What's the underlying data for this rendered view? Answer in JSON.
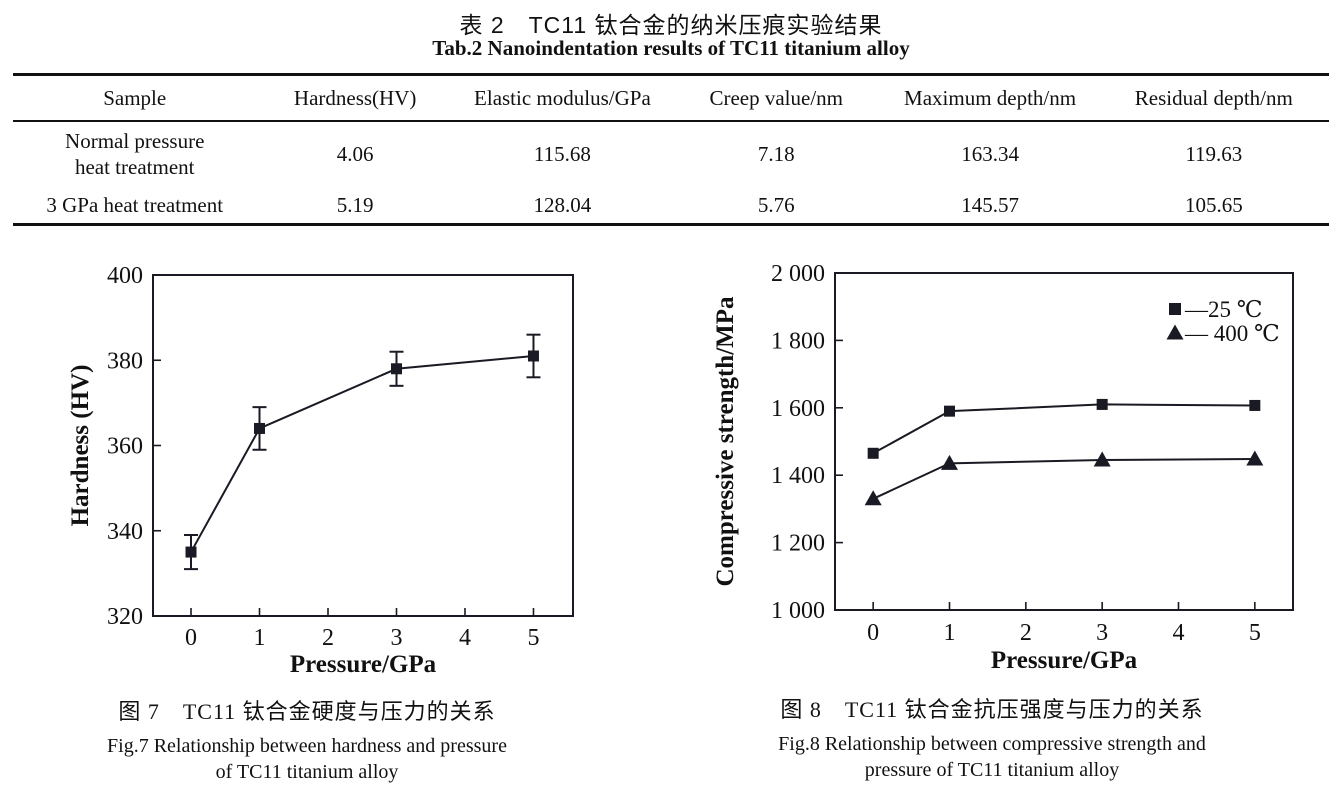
{
  "page": {
    "title_zh": "表 2　TC11 钛合金的纳米压痕实验结果",
    "title_en": "Tab.2 Nanoindentation results of TC11 titanium alloy"
  },
  "table": {
    "columns": [
      "Sample",
      "Hardness(HV)",
      "Elastic modulus/GPa",
      "Creep value/nm",
      "Maximum depth/nm",
      "Residual depth/nm"
    ],
    "rows": [
      {
        "sample": [
          "Normal pressure",
          "heat treatment"
        ],
        "values": [
          "4.06",
          "115.68",
          "7.18",
          "163.34",
          "119.63"
        ]
      },
      {
        "sample": [
          "3 GPa heat treatment"
        ],
        "values": [
          "5.19",
          "128.04",
          "5.76",
          "145.57",
          "105.65"
        ]
      }
    ]
  },
  "colors": {
    "ink": "#1a1a24",
    "text": "#111111",
    "background": "#ffffff"
  },
  "chart_data": [
    {
      "type": "line",
      "id": "fig7",
      "title": "",
      "x": [
        0,
        1,
        3,
        5
      ],
      "series": [
        {
          "name": "hardness",
          "marker": "square",
          "values": [
            335,
            364,
            378,
            381
          ],
          "errors": [
            4,
            5,
            4,
            5
          ]
        }
      ],
      "xlabel": "Pressure/GPa",
      "ylabel": "Hardness (HV)",
      "xticks": [
        0,
        1,
        2,
        3,
        4,
        5
      ],
      "yticks": [
        320,
        340,
        360,
        380,
        400
      ],
      "xlim": [
        -0.555,
        5.577
      ],
      "ylim": [
        320,
        400
      ],
      "grid": false,
      "caption_zh": "图 7　TC11 钛合金硬度与压力的关系",
      "caption_en_1": "Fig.7 Relationship between hardness and pressure",
      "caption_en_2": "of TC11 titanium alloy"
    },
    {
      "type": "line",
      "id": "fig8",
      "title": "",
      "x": [
        0,
        1,
        3,
        5
      ],
      "series": [
        {
          "name": "25 ℃",
          "marker": "square",
          "values": [
            1465,
            1590,
            1610,
            1607
          ]
        },
        {
          "name": "400 ℃",
          "marker": "triangle",
          "values": [
            1330,
            1435,
            1445,
            1448
          ]
        }
      ],
      "legend": [
        {
          "marker": "square",
          "label": "—25 ℃"
        },
        {
          "marker": "triangle",
          "label": "— 400 ℃"
        }
      ],
      "legend_position": "top-right-inside",
      "xlabel": "Pressure/GPa",
      "ylabel": "Compressive strength/MPa",
      "xticks": [
        0,
        1,
        2,
        3,
        4,
        5
      ],
      "yticks": [
        1000,
        1200,
        1400,
        1600,
        1800,
        2000
      ],
      "ytick_labels": [
        "1 000",
        "1 200",
        "1 400",
        "1 600",
        "1 800",
        "2 000"
      ],
      "xlim": [
        -0.5,
        5.5
      ],
      "ylim": [
        1000,
        2000
      ],
      "grid": false,
      "caption_zh": "图 8　TC11 钛合金抗压强度与压力的关系",
      "caption_en_1": "Fig.8 Relationship between compressive strength and",
      "caption_en_2": "pressure of TC11 titanium alloy"
    }
  ]
}
